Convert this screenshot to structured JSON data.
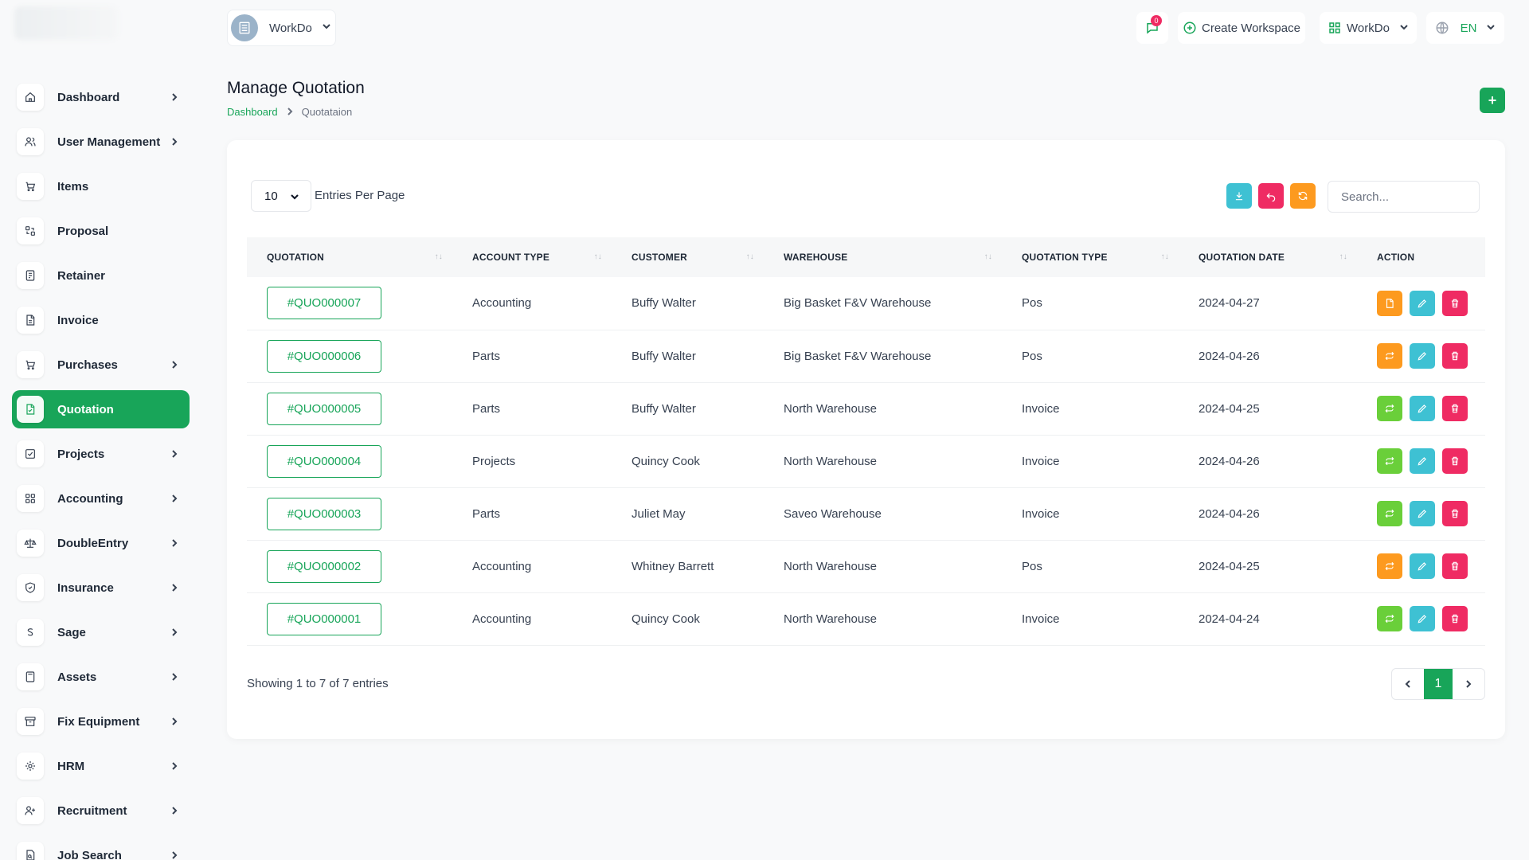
{
  "sidebar": {
    "items": [
      {
        "label": "Dashboard",
        "icon": "home-icon",
        "has_children": true
      },
      {
        "label": "User Management",
        "icon": "users-icon",
        "has_children": true
      },
      {
        "label": "Items",
        "icon": "cart-icon",
        "has_children": false
      },
      {
        "label": "Proposal",
        "icon": "proposal-icon",
        "has_children": false
      },
      {
        "label": "Retainer",
        "icon": "retainer-icon",
        "has_children": false
      },
      {
        "label": "Invoice",
        "icon": "invoice-icon",
        "has_children": false
      },
      {
        "label": "Purchases",
        "icon": "cart-icon",
        "has_children": true
      },
      {
        "label": "Quotation",
        "icon": "quotation-icon",
        "has_children": false,
        "active": true
      },
      {
        "label": "Projects",
        "icon": "check-square-icon",
        "has_children": true
      },
      {
        "label": "Accounting",
        "icon": "grid-icon",
        "has_children": true
      },
      {
        "label": "DoubleEntry",
        "icon": "scale-icon",
        "has_children": true
      },
      {
        "label": "Insurance",
        "icon": "shield-icon",
        "has_children": true
      },
      {
        "label": "Sage",
        "icon": "s-letter-icon",
        "has_children": true
      },
      {
        "label": "Assets",
        "icon": "calculator-icon",
        "has_children": true
      },
      {
        "label": "Fix Equipment",
        "icon": "archive-icon",
        "has_children": true
      },
      {
        "label": "HRM",
        "icon": "hrm-icon",
        "has_children": true
      },
      {
        "label": "Recruitment",
        "icon": "user-plus-icon",
        "has_children": true
      },
      {
        "label": "Job Search",
        "icon": "file-search-icon",
        "has_children": true
      }
    ]
  },
  "topbar": {
    "workspace_name": "WorkDo",
    "notification_count": "0",
    "create_workspace_label": "Create Workspace",
    "workspace_switch_label": "WorkDo",
    "language": "EN"
  },
  "page": {
    "title": "Manage Quotation",
    "breadcrumb_home": "Dashboard",
    "breadcrumb_current": "Quotataion",
    "add_label": "+"
  },
  "table_controls": {
    "per_page_value": "10",
    "per_page_label": "Entries Per Page",
    "search_placeholder": "Search..."
  },
  "table": {
    "headers": [
      "QUOTATION",
      "ACCOUNT TYPE",
      "CUSTOMER",
      "WAREHOUSE",
      "QUOTATION TYPE",
      "QUOTATION DATE",
      "ACTION"
    ],
    "rows": [
      {
        "id": "#QUO000007",
        "account_type": "Accounting",
        "customer": "Buffy Walter",
        "warehouse": "Big Basket F&V Warehouse",
        "type": "Pos",
        "date": "2024-04-27",
        "first_action": "file",
        "first_color": "orange"
      },
      {
        "id": "#QUO000006",
        "account_type": "Parts",
        "customer": "Buffy Walter",
        "warehouse": "Big Basket F&V Warehouse",
        "type": "Pos",
        "date": "2024-04-26",
        "first_action": "convert",
        "first_color": "orange"
      },
      {
        "id": "#QUO000005",
        "account_type": "Parts",
        "customer": "Buffy Walter",
        "warehouse": "North Warehouse",
        "type": "Invoice",
        "date": "2024-04-25",
        "first_action": "convert",
        "first_color": "green"
      },
      {
        "id": "#QUO000004",
        "account_type": "Projects",
        "customer": "Quincy Cook",
        "warehouse": "North Warehouse",
        "type": "Invoice",
        "date": "2024-04-26",
        "first_action": "convert",
        "first_color": "green"
      },
      {
        "id": "#QUO000003",
        "account_type": "Parts",
        "customer": "Juliet May",
        "warehouse": "Saveo Warehouse",
        "type": "Invoice",
        "date": "2024-04-26",
        "first_action": "convert",
        "first_color": "green"
      },
      {
        "id": "#QUO000002",
        "account_type": "Accounting",
        "customer": "Whitney Barrett",
        "warehouse": "North Warehouse",
        "type": "Pos",
        "date": "2024-04-25",
        "first_action": "convert",
        "first_color": "orange"
      },
      {
        "id": "#QUO000001",
        "account_type": "Accounting",
        "customer": "Quincy Cook",
        "warehouse": "North Warehouse",
        "type": "Invoice",
        "date": "2024-04-24",
        "first_action": "convert",
        "first_color": "green"
      }
    ]
  },
  "footer": {
    "showing_text": "Showing 1 to 7 of 7 entries",
    "current_page": "1"
  },
  "colors": {
    "accent": "#18a559",
    "orange": "#fd9a1f",
    "teal": "#3ec1d3",
    "red": "#ef2b63",
    "green": "#6acf3a"
  }
}
